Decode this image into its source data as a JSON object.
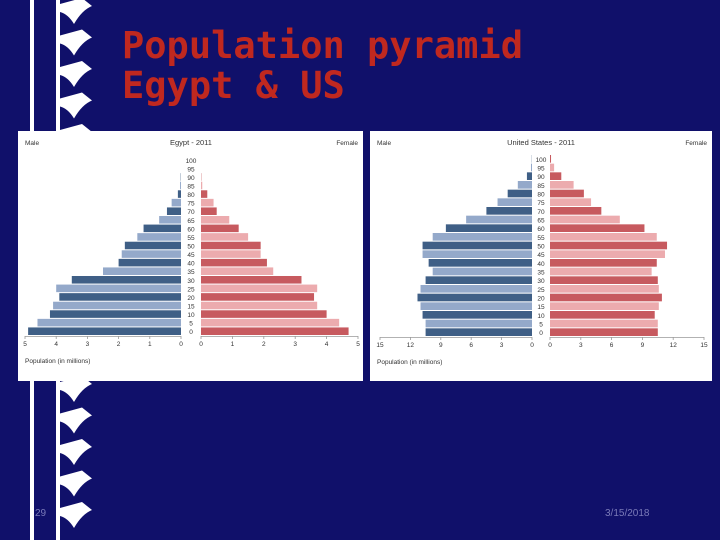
{
  "slide": {
    "title_line1": "Population pyramid",
    "title_line2": "Egypt & US",
    "slide_number": "29",
    "date": "3/15/2018"
  },
  "colors": {
    "background": "#10106a",
    "title": "#c0281f",
    "male_dark": "#3f5f86",
    "male_light": "#94a9ca",
    "female_dark": "#c75a5f",
    "female_light": "#ecabae"
  },
  "chart_data": [
    {
      "type": "bar",
      "subtype": "population-pyramid",
      "title": "Egypt - 2011",
      "left_label": "Male",
      "right_label": "Female",
      "xlabel": "Population (in millions)",
      "xlim": [
        0,
        5
      ],
      "xticks": [
        5,
        4,
        3,
        2,
        1,
        0
      ],
      "x_tick_labels": [
        "5",
        "4",
        "3",
        "2",
        "1",
        "0"
      ],
      "age_labels": [
        "0",
        "5",
        "10",
        "15",
        "20",
        "25",
        "30",
        "35",
        "40",
        "45",
        "50",
        "55",
        "60",
        "65",
        "70",
        "75",
        "80",
        "85",
        "90",
        "95",
        "100"
      ],
      "series": [
        {
          "name": "Male",
          "values": [
            4.9,
            4.6,
            4.2,
            4.1,
            3.9,
            4.0,
            3.5,
            2.5,
            2.0,
            1.9,
            1.8,
            1.4,
            1.2,
            0.7,
            0.45,
            0.3,
            0.1,
            0.03,
            0.01,
            0,
            0
          ]
        },
        {
          "name": "Female",
          "values": [
            4.7,
            4.4,
            4.0,
            3.7,
            3.6,
            3.7,
            3.2,
            2.3,
            2.1,
            1.9,
            1.9,
            1.5,
            1.2,
            0.9,
            0.5,
            0.4,
            0.2,
            0.04,
            0.01,
            0,
            0
          ]
        }
      ]
    },
    {
      "type": "bar",
      "subtype": "population-pyramid",
      "title": "United States - 2011",
      "left_label": "Male",
      "right_label": "Female",
      "xlabel": "Population (in millions)",
      "xlim": [
        0,
        15
      ],
      "xticks": [
        15,
        12,
        9,
        6,
        3,
        0
      ],
      "x_tick_labels": [
        "15",
        "12",
        "9",
        "6",
        "3",
        "0"
      ],
      "age_labels": [
        "0",
        "5",
        "10",
        "15",
        "20",
        "25",
        "30",
        "35",
        "40",
        "45",
        "50",
        "55",
        "60",
        "65",
        "70",
        "75",
        "80",
        "85",
        "90",
        "95",
        "100"
      ],
      "series": [
        {
          "name": "Male",
          "values": [
            10.5,
            10.5,
            10.8,
            11.0,
            11.3,
            11.0,
            10.5,
            9.8,
            10.2,
            10.8,
            10.8,
            9.8,
            8.5,
            6.5,
            4.5,
            3.4,
            2.4,
            1.4,
            0.5,
            0.1,
            0.02
          ]
        },
        {
          "name": "Female",
          "values": [
            10.5,
            10.5,
            10.2,
            10.6,
            10.9,
            10.6,
            10.5,
            9.9,
            10.4,
            11.2,
            11.4,
            10.4,
            9.2,
            6.8,
            5.0,
            4.0,
            3.3,
            2.3,
            1.1,
            0.4,
            0.1
          ]
        }
      ]
    }
  ]
}
